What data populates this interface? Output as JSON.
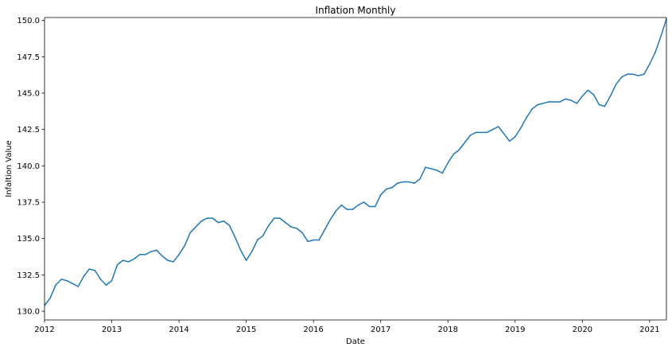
{
  "chart_data": {
    "type": "line",
    "title": "Inflation Monthly",
    "xlabel": "Date",
    "ylabel": "Infaltion Value",
    "xlim": [
      "2012-01",
      "2021-04"
    ],
    "ylim": [
      129.4,
      150.2
    ],
    "grid": false,
    "legend": false,
    "line_color": "#1f77b4",
    "x_ticks": [
      {
        "value": "2012-01",
        "label": "2012"
      },
      {
        "value": "2013-01",
        "label": "2013"
      },
      {
        "value": "2014-01",
        "label": "2014"
      },
      {
        "value": "2015-01",
        "label": "2015"
      },
      {
        "value": "2016-01",
        "label": "2016"
      },
      {
        "value": "2017-01",
        "label": "2017"
      },
      {
        "value": "2018-01",
        "label": "2018"
      },
      {
        "value": "2019-01",
        "label": "2019"
      },
      {
        "value": "2020-01",
        "label": "2020"
      },
      {
        "value": "2021-01",
        "label": "2021"
      }
    ],
    "y_ticks": [
      {
        "value": 130.0,
        "label": "130.0"
      },
      {
        "value": 132.5,
        "label": "132.5"
      },
      {
        "value": 135.0,
        "label": "135.0"
      },
      {
        "value": 137.5,
        "label": "137.5"
      },
      {
        "value": 140.0,
        "label": "140.0"
      },
      {
        "value": 142.5,
        "label": "142.5"
      },
      {
        "value": 145.0,
        "label": "145.0"
      },
      {
        "value": 147.5,
        "label": "147.5"
      },
      {
        "value": 150.0,
        "label": "150.0"
      }
    ],
    "x": [
      "2012-01",
      "2012-02",
      "2012-03",
      "2012-04",
      "2012-05",
      "2012-06",
      "2012-07",
      "2012-08",
      "2012-09",
      "2012-10",
      "2012-11",
      "2012-12",
      "2013-01",
      "2013-02",
      "2013-03",
      "2013-04",
      "2013-05",
      "2013-06",
      "2013-07",
      "2013-08",
      "2013-09",
      "2013-10",
      "2013-11",
      "2013-12",
      "2014-01",
      "2014-02",
      "2014-03",
      "2014-04",
      "2014-05",
      "2014-06",
      "2014-07",
      "2014-08",
      "2014-09",
      "2014-10",
      "2014-11",
      "2014-12",
      "2015-01",
      "2015-02",
      "2015-03",
      "2015-04",
      "2015-05",
      "2015-06",
      "2015-07",
      "2015-08",
      "2015-09",
      "2015-10",
      "2015-11",
      "2015-12",
      "2016-01",
      "2016-02",
      "2016-03",
      "2016-04",
      "2016-05",
      "2016-06",
      "2016-07",
      "2016-08",
      "2016-09",
      "2016-10",
      "2016-11",
      "2016-12",
      "2017-01",
      "2017-02",
      "2017-03",
      "2017-04",
      "2017-05",
      "2017-06",
      "2017-07",
      "2017-08",
      "2017-09",
      "2017-10",
      "2017-11",
      "2017-12",
      "2018-01",
      "2018-02",
      "2018-03",
      "2018-04",
      "2018-05",
      "2018-06",
      "2018-07",
      "2018-08",
      "2018-09",
      "2018-10",
      "2018-11",
      "2018-12",
      "2019-01",
      "2019-02",
      "2019-03",
      "2019-04",
      "2019-05",
      "2019-06",
      "2019-07",
      "2019-08",
      "2019-09",
      "2019-10",
      "2019-11",
      "2019-12",
      "2020-01",
      "2020-02",
      "2020-03",
      "2020-04",
      "2020-05",
      "2020-06",
      "2020-07",
      "2020-08",
      "2020-09",
      "2020-10",
      "2020-11",
      "2020-12",
      "2021-01",
      "2021-02",
      "2021-03",
      "2021-04"
    ],
    "y": [
      130.4,
      130.9,
      131.8,
      132.2,
      132.1,
      131.9,
      131.7,
      132.4,
      132.9,
      132.8,
      132.2,
      131.8,
      132.1,
      133.2,
      133.5,
      133.4,
      133.6,
      133.9,
      133.9,
      134.1,
      134.2,
      133.8,
      133.5,
      133.4,
      133.9,
      134.5,
      135.4,
      135.8,
      136.2,
      136.4,
      136.4,
      136.1,
      136.2,
      135.9,
      135.1,
      134.2,
      133.5,
      134.1,
      134.9,
      135.2,
      135.9,
      136.4,
      136.4,
      136.1,
      135.8,
      135.7,
      135.4,
      134.8,
      134.9,
      134.9,
      135.6,
      136.3,
      136.9,
      137.3,
      137.0,
      137.0,
      137.3,
      137.5,
      137.2,
      137.2,
      138.0,
      138.4,
      138.5,
      138.8,
      138.9,
      138.9,
      138.8,
      139.1,
      139.9,
      139.8,
      139.7,
      139.5,
      140.2,
      140.8,
      141.1,
      141.6,
      142.1,
      142.3,
      142.3,
      142.3,
      142.5,
      142.7,
      142.2,
      141.7,
      142.0,
      142.6,
      143.3,
      143.9,
      144.2,
      144.3,
      144.4,
      144.4,
      144.4,
      144.6,
      144.5,
      144.3,
      144.8,
      145.2,
      144.9,
      144.2,
      144.1,
      144.8,
      145.6,
      146.1,
      146.3,
      146.3,
      146.2,
      146.3,
      147.0,
      147.8,
      148.9,
      150.1
    ]
  }
}
